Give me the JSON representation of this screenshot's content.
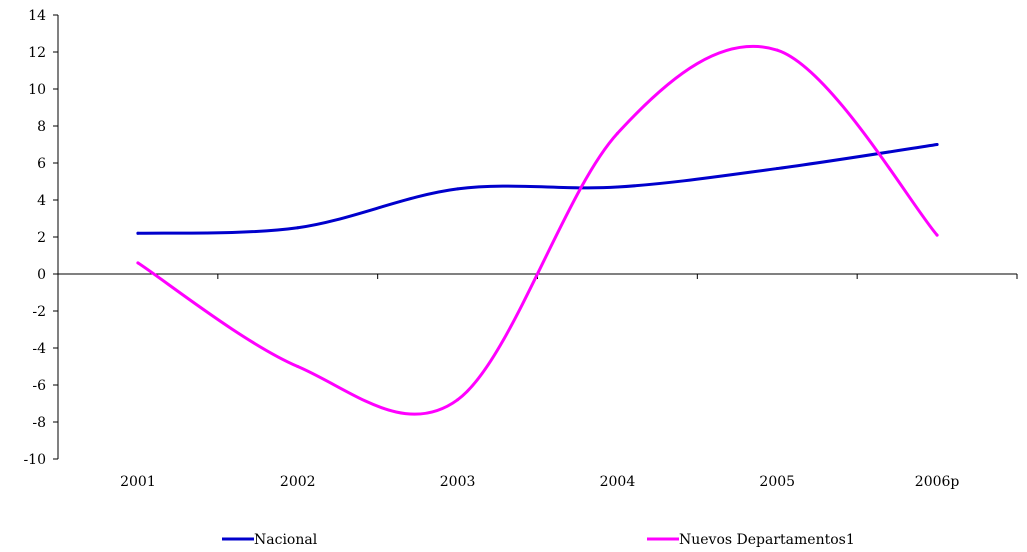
{
  "chart_data": {
    "type": "line",
    "categories": [
      "2001",
      "2002",
      "2003",
      "2004",
      "2005",
      "2006p"
    ],
    "series": [
      {
        "name": "Nacional",
        "color": "#0000cc",
        "values": [
          2.2,
          2.5,
          4.6,
          4.7,
          5.7,
          7.0
        ]
      },
      {
        "name": "Nuevos Departamentos1",
        "color": "#ff00ff",
        "values": [
          0.6,
          -5.0,
          -6.8,
          7.6,
          12.1,
          2.1
        ]
      }
    ],
    "ylim": [
      -10,
      14
    ],
    "yticks": [
      -10,
      -8,
      -6,
      -4,
      -2,
      0,
      2,
      4,
      6,
      8,
      10,
      12,
      14
    ],
    "grid": false,
    "legend": "bottom"
  }
}
